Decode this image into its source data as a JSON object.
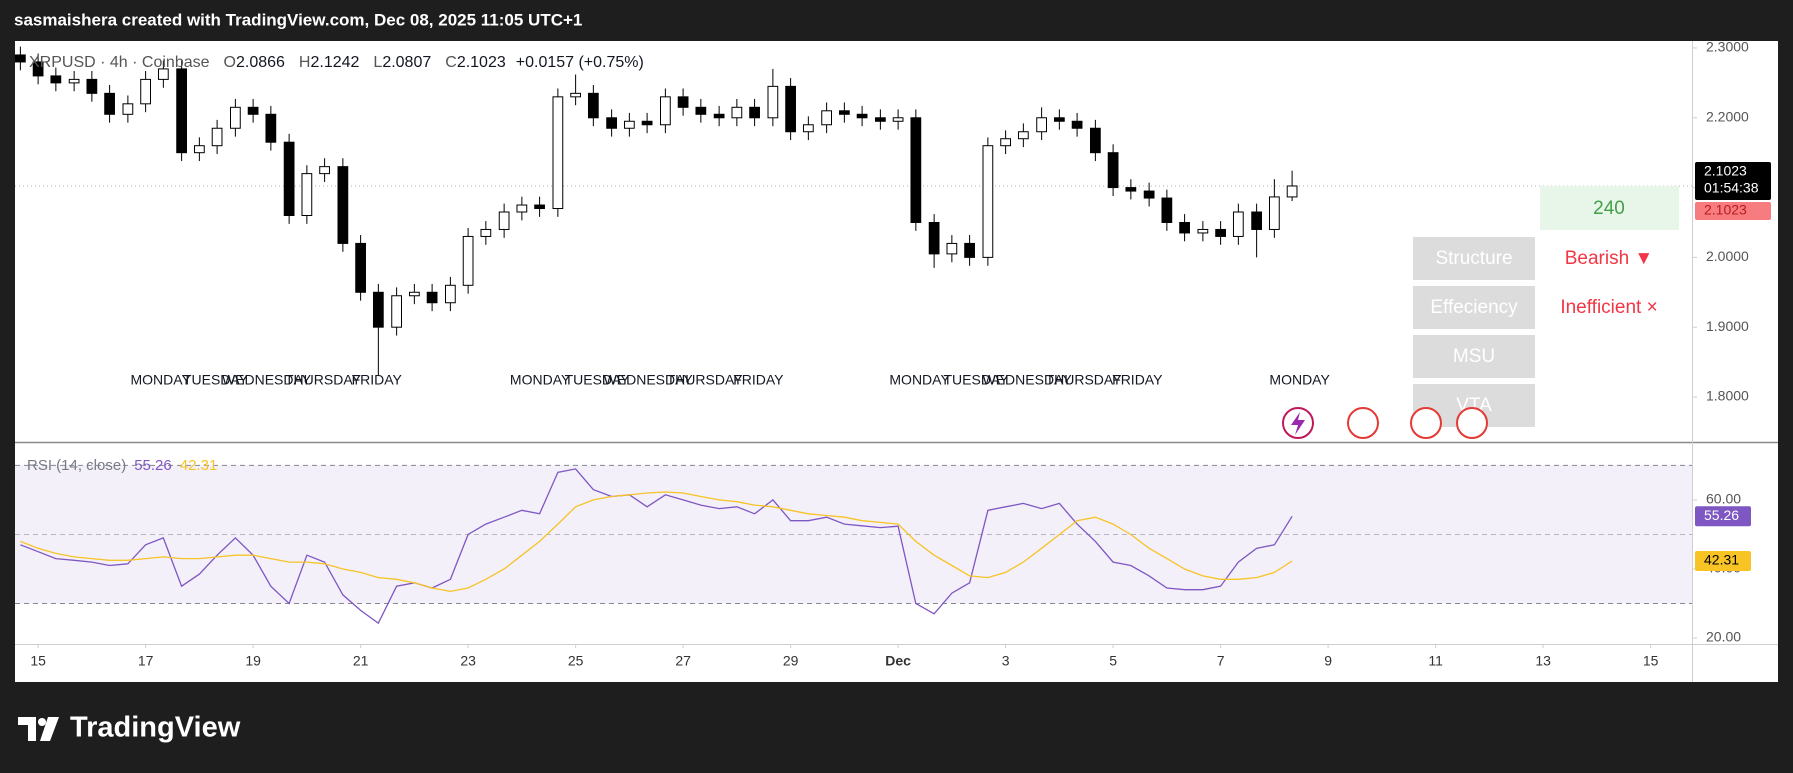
{
  "header": {
    "attribution": "sasmaishera created with TradingView.com, Dec 08, 2025 11:05 UTC+1",
    "symbol": "XRPUSD · 4h · Coinbase",
    "ohlc_labels": [
      "O",
      "H",
      "L",
      "C"
    ],
    "change": "+0.0157 (+0.75%)",
    "countdown": "01:54:38"
  },
  "chart_data": [
    {
      "type": "candlestick",
      "x": [
        14.67,
        15,
        15.33,
        15.67,
        16,
        16.33,
        16.67,
        17,
        17.33,
        17.67,
        18,
        18.33,
        18.67,
        19,
        19.33,
        19.67,
        20,
        20.33,
        20.67,
        21,
        21.33,
        21.67,
        22,
        22.33,
        22.67,
        23,
        23.33,
        23.67,
        24,
        24.33,
        24.67,
        25,
        25.33,
        25.67,
        26,
        26.33,
        26.67,
        27,
        27.33,
        27.67,
        28,
        28.33,
        28.67,
        29,
        29.33,
        29.67,
        30,
        30.33,
        30.67,
        31,
        31.33,
        31.67,
        32,
        32.33,
        32.67,
        33,
        33.33,
        33.67,
        34,
        34.33,
        34.67,
        35,
        35.33,
        35.67,
        36,
        36.33,
        36.67,
        37,
        37.33,
        37.67,
        38,
        38.33
      ],
      "open": [
        2.29,
        2.28,
        2.26,
        2.25,
        2.255,
        2.235,
        2.205,
        2.22,
        2.255,
        2.27,
        2.15,
        2.16,
        2.185,
        2.215,
        2.205,
        2.165,
        2.06,
        2.12,
        2.13,
        2.02,
        1.95,
        1.9,
        1.945,
        1.95,
        1.935,
        1.96,
        2.03,
        2.04,
        2.065,
        2.075,
        2.07,
        2.23,
        2.235,
        2.2,
        2.185,
        2.195,
        2.19,
        2.23,
        2.215,
        2.205,
        2.2,
        2.215,
        2.2,
        2.245,
        2.18,
        2.19,
        2.21,
        2.205,
        2.2,
        2.195,
        2.2,
        2.05,
        2.005,
        2.02,
        2.0,
        2.16,
        2.17,
        2.18,
        2.2,
        2.195,
        2.185,
        2.15,
        2.1,
        2.095,
        2.085,
        2.05,
        2.035,
        2.04,
        2.03,
        2.065,
        2.04,
        2.0866
      ],
      "high": [
        2.302,
        2.292,
        2.272,
        2.267,
        2.267,
        2.247,
        2.232,
        2.267,
        2.282,
        2.282,
        2.172,
        2.197,
        2.227,
        2.227,
        2.217,
        2.177,
        2.132,
        2.142,
        2.142,
        2.032,
        1.962,
        1.957,
        1.962,
        1.962,
        1.972,
        2.042,
        2.052,
        2.077,
        2.087,
        2.087,
        2.242,
        2.262,
        2.247,
        2.212,
        2.207,
        2.207,
        2.242,
        2.242,
        2.227,
        2.217,
        2.227,
        2.227,
        2.27,
        2.257,
        2.202,
        2.222,
        2.222,
        2.217,
        2.212,
        2.212,
        2.212,
        2.062,
        2.032,
        2.032,
        2.172,
        2.182,
        2.192,
        2.215,
        2.212,
        2.207,
        2.197,
        2.162,
        2.112,
        2.107,
        2.097,
        2.062,
        2.052,
        2.052,
        2.077,
        2.077,
        2.112,
        2.1242
      ],
      "low": [
        2.268,
        2.248,
        2.238,
        2.238,
        2.223,
        2.193,
        2.193,
        2.208,
        2.243,
        2.138,
        2.138,
        2.148,
        2.173,
        2.193,
        2.153,
        2.048,
        2.048,
        2.108,
        2.008,
        1.938,
        1.83,
        1.888,
        1.933,
        1.923,
        1.923,
        1.948,
        2.018,
        2.028,
        2.053,
        2.058,
        2.058,
        2.218,
        2.188,
        2.173,
        2.173,
        2.178,
        2.178,
        2.203,
        2.193,
        2.188,
        2.188,
        2.188,
        2.188,
        2.168,
        2.168,
        2.178,
        2.193,
        2.188,
        2.183,
        2.183,
        2.038,
        1.985,
        1.993,
        1.988,
        1.988,
        2.148,
        2.158,
        2.168,
        2.183,
        2.173,
        2.138,
        2.088,
        2.083,
        2.073,
        2.038,
        2.023,
        2.023,
        2.018,
        2.018,
        2.0,
        2.028,
        2.0807
      ],
      "close": [
        2.28,
        2.26,
        2.25,
        2.255,
        2.235,
        2.205,
        2.22,
        2.255,
        2.27,
        2.15,
        2.16,
        2.185,
        2.215,
        2.205,
        2.165,
        2.06,
        2.12,
        2.13,
        2.02,
        1.95,
        1.9,
        1.945,
        1.95,
        1.935,
        1.96,
        2.03,
        2.04,
        2.065,
        2.075,
        2.07,
        2.23,
        2.235,
        2.2,
        2.185,
        2.195,
        2.19,
        2.23,
        2.215,
        2.205,
        2.2,
        2.215,
        2.2,
        2.245,
        2.18,
        2.19,
        2.21,
        2.205,
        2.2,
        2.195,
        2.2,
        2.05,
        2.005,
        2.02,
        2.0,
        2.16,
        2.17,
        2.18,
        2.2,
        2.195,
        2.185,
        2.15,
        2.1,
        2.095,
        2.085,
        2.05,
        2.035,
        2.04,
        2.03,
        2.065,
        2.04,
        2.0866,
        2.1023
      ],
      "colors": {
        "up": "#ffffff",
        "down": "#000000",
        "wick": "#000000"
      },
      "ylim": [
        1.7355,
        2.31
      ],
      "yticks": [
        {
          "value": 1.8,
          "label": "1.8000"
        },
        {
          "value": 1.9,
          "label": "1.9000"
        },
        {
          "value": 2.0,
          "label": "2.0000"
        },
        {
          "value": 2.1,
          "label": "2.1000"
        },
        {
          "value": 2.2,
          "label": "2.2000"
        },
        {
          "value": 2.3,
          "label": "2.3000"
        }
      ],
      "xlim": [
        14.57,
        45.77
      ],
      "xticks": [
        15,
        17,
        19,
        21,
        23,
        25,
        27,
        29,
        {
          "value": 31,
          "label": "Dec"
        },
        {
          "value": 33,
          "label": "3"
        },
        {
          "value": 35,
          "label": "5"
        },
        {
          "value": 37,
          "label": "7"
        },
        {
          "value": 39,
          "label": "9"
        },
        {
          "value": 41,
          "label": "11"
        },
        {
          "value": 43,
          "label": "13"
        },
        {
          "value": 45,
          "label": "15"
        }
      ],
      "session_labels": [
        {
          "text": "MONDAY",
          "x": 17.28
        },
        {
          "text": "TUESDAY",
          "x": 18.3
        },
        {
          "text": "WEDNESDAY",
          "x": 19.25
        },
        {
          "text": "THURSDAY",
          "x": 20.3
        },
        {
          "text": "FRIDAY",
          "x": 21.3
        },
        {
          "text": "MONDAY",
          "x": 24.34
        },
        {
          "text": "TUESDAY",
          "x": 25.4
        },
        {
          "text": "WEDNESDAY",
          "x": 26.35
        },
        {
          "text": "THURSDAY",
          "x": 27.4
        },
        {
          "text": "FRIDAY",
          "x": 28.4
        },
        {
          "text": "MONDAY",
          "x": 31.4
        },
        {
          "text": "TUESDAY",
          "x": 32.45
        },
        {
          "text": "WEDNESDAY",
          "x": 33.4
        },
        {
          "text": "THURSDAY",
          "x": 34.45
        },
        {
          "text": "FRIDAY",
          "x": 35.45
        },
        {
          "text": "MONDAY",
          "x": 38.47
        }
      ]
    },
    {
      "type": "line",
      "title": "RSI (14, close)",
      "series": [
        {
          "color": "#7e57c2",
          "values": [
            47,
            45,
            43,
            42.5,
            42,
            41,
            41.5,
            47,
            49,
            35,
            38.5,
            44,
            49,
            44,
            35,
            30,
            44,
            42,
            32.5,
            28,
            24.3,
            35,
            36,
            34.5,
            37,
            50,
            53,
            55,
            57,
            56,
            68,
            69,
            63,
            61,
            61.5,
            58,
            61.5,
            60,
            58.5,
            57.5,
            58,
            56,
            60,
            54,
            54,
            55,
            53,
            52.5,
            52,
            52.4,
            30,
            27,
            33,
            36,
            57,
            58,
            59,
            57.5,
            59,
            53,
            48,
            42,
            41,
            38,
            34.5,
            34,
            34,
            35,
            42,
            46,
            47,
            55.26
          ]
        },
        {
          "color": "#f7c325",
          "values": [
            48,
            46,
            44.5,
            43.5,
            43,
            42.5,
            42.5,
            43,
            43.5,
            43,
            43,
            43.5,
            44,
            44,
            43,
            42,
            42,
            41.5,
            40,
            39,
            37.5,
            37,
            36,
            34.5,
            33.5,
            34.5,
            37,
            40,
            44,
            48,
            53,
            58,
            60,
            61,
            61.5,
            62,
            62.3,
            62,
            61,
            60,
            59.5,
            58.5,
            58,
            57,
            56,
            55.5,
            55,
            54,
            53.5,
            53,
            48,
            44,
            41,
            38,
            37.5,
            39,
            42,
            46,
            50,
            54,
            55,
            53,
            50,
            46,
            43,
            40,
            38,
            37,
            37,
            37.5,
            39,
            42.31
          ]
        }
      ],
      "ylim": [
        18.26,
        76.5
      ],
      "yticks": [
        {
          "value": 20,
          "label": "20.00"
        },
        {
          "value": 40,
          "label": "40.00"
        },
        {
          "value": 60,
          "label": "60.00"
        }
      ],
      "bands": [
        70,
        50,
        30
      ]
    }
  ],
  "panel": {
    "timeframe": "240",
    "rows": [
      {
        "label": "Structure",
        "value": "Bearish ▼"
      },
      {
        "label": "Effeciency",
        "value": "Inefficient ×"
      },
      {
        "label": "MSU"
      },
      {
        "label": "VTA"
      }
    ]
  },
  "footer": {
    "brand": "TradingView"
  }
}
